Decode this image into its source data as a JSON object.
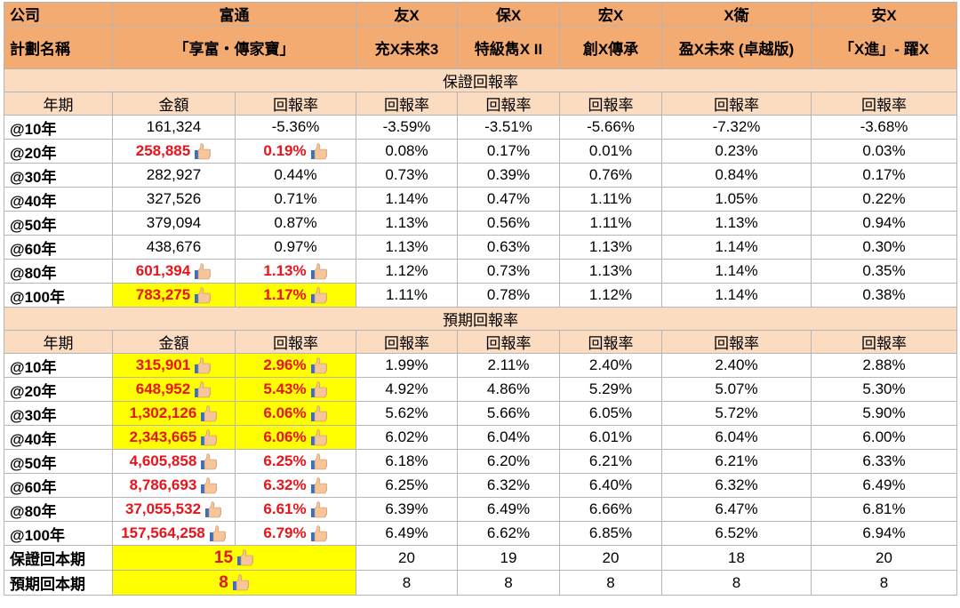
{
  "header": {
    "company_label": "公司",
    "plan_label": "計劃名稱",
    "companies": [
      "富通",
      "友X",
      "保X",
      "宏X",
      "X衛",
      "安X"
    ],
    "plans": [
      "「享富・傳家寶」",
      "充X未來3",
      "特級雋X II",
      "創X傳承",
      "盈X未來 (卓越版)",
      "「X進」- 躍X"
    ]
  },
  "col_labels": {
    "period": "年期",
    "amount": "金額",
    "rate": "回報率"
  },
  "guaranteed": {
    "title": "保證回報率",
    "rows": [
      {
        "period": "@10年",
        "amount": "161,324",
        "rate": "-5.36%",
        "others": [
          "-3.59%",
          "-3.51%",
          "-5.66%",
          "-7.32%",
          "-3.68%"
        ],
        "highlight": false,
        "yellow": false
      },
      {
        "period": "@20年",
        "amount": "258,885",
        "rate": "0.19%",
        "others": [
          "0.08%",
          "0.17%",
          "0.01%",
          "0.23%",
          "0.03%"
        ],
        "highlight": true,
        "yellow": false
      },
      {
        "period": "@30年",
        "amount": "282,927",
        "rate": "0.44%",
        "others": [
          "0.73%",
          "0.39%",
          "0.76%",
          "0.84%",
          "0.17%"
        ],
        "highlight": false,
        "yellow": false
      },
      {
        "period": "@40年",
        "amount": "327,526",
        "rate": "0.71%",
        "others": [
          "1.14%",
          "0.47%",
          "1.11%",
          "1.05%",
          "0.22%"
        ],
        "highlight": false,
        "yellow": false
      },
      {
        "period": "@50年",
        "amount": "379,094",
        "rate": "0.87%",
        "others": [
          "1.13%",
          "0.56%",
          "1.11%",
          "1.13%",
          "0.94%"
        ],
        "highlight": false,
        "yellow": false
      },
      {
        "period": "@60年",
        "amount": "438,676",
        "rate": "0.97%",
        "others": [
          "1.13%",
          "0.63%",
          "1.13%",
          "1.14%",
          "0.30%"
        ],
        "highlight": false,
        "yellow": false
      },
      {
        "period": "@80年",
        "amount": "601,394",
        "rate": "1.13%",
        "others": [
          "1.12%",
          "0.73%",
          "1.13%",
          "1.14%",
          "0.35%"
        ],
        "highlight": true,
        "yellow": false
      },
      {
        "period": "@100年",
        "amount": "783,275",
        "rate": "1.17%",
        "others": [
          "1.11%",
          "0.78%",
          "1.12%",
          "1.14%",
          "0.38%"
        ],
        "highlight": true,
        "yellow": true
      }
    ]
  },
  "projected": {
    "title": "預期回報率",
    "rows": [
      {
        "period": "@10年",
        "amount": "315,901",
        "rate": "2.96%",
        "others": [
          "1.99%",
          "2.11%",
          "2.40%",
          "2.40%",
          "2.88%"
        ],
        "highlight": true,
        "yellow": true
      },
      {
        "period": "@20年",
        "amount": "648,952",
        "rate": "5.43%",
        "others": [
          "4.92%",
          "4.86%",
          "5.29%",
          "5.07%",
          "5.30%"
        ],
        "highlight": true,
        "yellow": true
      },
      {
        "period": "@30年",
        "amount": "1,302,126",
        "rate": "6.06%",
        "others": [
          "5.62%",
          "5.66%",
          "6.05%",
          "5.72%",
          "5.90%"
        ],
        "highlight": true,
        "yellow": true
      },
      {
        "period": "@40年",
        "amount": "2,343,665",
        "rate": "6.06%",
        "others": [
          "6.02%",
          "6.04%",
          "6.01%",
          "6.04%",
          "6.00%"
        ],
        "highlight": true,
        "yellow": true
      },
      {
        "period": "@50年",
        "amount": "4,605,858",
        "rate": "6.25%",
        "others": [
          "6.18%",
          "6.20%",
          "6.21%",
          "6.21%",
          "6.33%"
        ],
        "highlight": true,
        "yellow": false
      },
      {
        "period": "@60年",
        "amount": "8,786,693",
        "rate": "6.32%",
        "others": [
          "6.25%",
          "6.32%",
          "6.40%",
          "6.32%",
          "6.49%"
        ],
        "highlight": true,
        "yellow": false
      },
      {
        "period": "@80年",
        "amount": "37,055,532",
        "rate": "6.61%",
        "others": [
          "6.39%",
          "6.49%",
          "6.66%",
          "6.47%",
          "6.81%"
        ],
        "highlight": true,
        "yellow": false
      },
      {
        "period": "@100年",
        "amount": "157,564,258",
        "rate": "6.79%",
        "others": [
          "6.49%",
          "6.62%",
          "6.85%",
          "6.52%",
          "6.94%"
        ],
        "highlight": true,
        "yellow": false
      }
    ]
  },
  "payback": [
    {
      "label": "保證回本期",
      "value": "15",
      "others": [
        "20",
        "19",
        "20",
        "18",
        "20"
      ]
    },
    {
      "label": "預期回本期",
      "value": "8",
      "others": [
        "8",
        "8",
        "8",
        "8",
        "8"
      ]
    }
  ],
  "icons": {
    "thumb": "thumbs-up-icon"
  },
  "colors": {
    "header": "#f4ab72",
    "section": "#fbdcc0",
    "highlight_text": "#e8141b",
    "highlight_bg": "#ffff00"
  }
}
